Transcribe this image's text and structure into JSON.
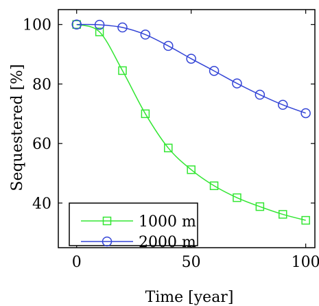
{
  "chart_data": {
    "type": "line",
    "title": "",
    "xlabel": "Time [year]",
    "ylabel": "Sequestered [%]",
    "xlim": [
      -8,
      104
    ],
    "ylim": [
      25,
      105
    ],
    "xticks": [
      0,
      50,
      100
    ],
    "yticks": [
      40,
      60,
      80,
      100
    ],
    "grid": false,
    "legend_position": "bottom-left",
    "x": [
      0,
      10,
      20,
      30,
      40,
      50,
      60,
      70,
      80,
      90,
      100
    ],
    "series": [
      {
        "name": "1000 m",
        "color": "#33e633",
        "marker": "square",
        "values": [
          100,
          97.5,
          84.5,
          70,
          58.5,
          51.2,
          45.8,
          41.8,
          38.8,
          36.2,
          34.2
        ]
      },
      {
        "name": "2000 m",
        "color": "#3344d6",
        "marker": "circle",
        "values": [
          100,
          99.9,
          99,
          96.6,
          92.8,
          88.5,
          84.4,
          80.2,
          76.4,
          73,
          70.2
        ]
      }
    ]
  }
}
